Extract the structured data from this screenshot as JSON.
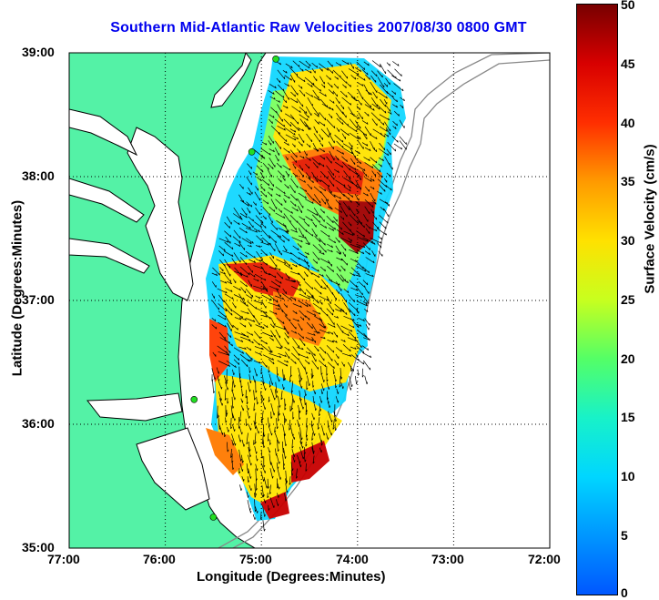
{
  "title": "Southern Mid-Atlantic Raw Velocities 2007/08/30 0800 GMT",
  "x_axis": {
    "label": "Longitude (Degrees:Minutes)",
    "ticks": [
      "77:00",
      "76:00",
      "75:00",
      "74:00",
      "73:00",
      "72:00"
    ]
  },
  "y_axis": {
    "label": "Latitude (Degrees:Minutes)",
    "ticks": [
      "39:00",
      "38:00",
      "37:00",
      "36:00",
      "35:00"
    ]
  },
  "colorbar": {
    "label": "Surface Velocity (cm/s)",
    "ticks": [
      "50",
      "45",
      "40",
      "35",
      "30",
      "25",
      "20",
      "15",
      "10",
      "5",
      "0"
    ]
  },
  "colors": {
    "land": "#54f2a6",
    "title": "#0000ee",
    "station": "#22dd22"
  },
  "map": {
    "lon_range": [
      -77,
      -72
    ],
    "lat_range": [
      35,
      39
    ],
    "grid": true,
    "stations": [
      {
        "lon": -74.85,
        "lat": 38.95
      },
      {
        "lon": -75.1,
        "lat": 38.2
      },
      {
        "lon": -75.7,
        "lat": 36.2
      },
      {
        "lon": -75.5,
        "lat": 35.25
      }
    ]
  }
}
